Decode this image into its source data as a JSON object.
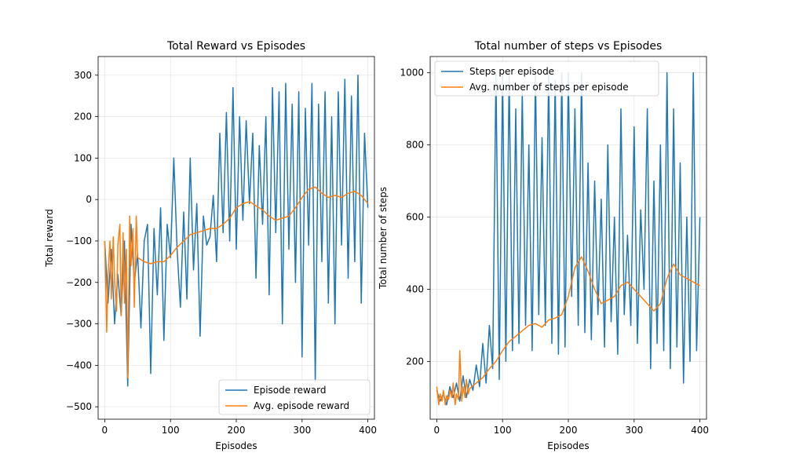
{
  "colors": {
    "series_blue": "#1f77b4",
    "series_orange": "#ff7f0e",
    "grid": "#e6e6e6",
    "axes": "#000000"
  },
  "chart_data": [
    {
      "type": "line",
      "title": "Total Reward vs Episodes",
      "xlabel": "Episodes",
      "ylabel": "Total reward",
      "xlim": [
        -10,
        410
      ],
      "ylim": [
        -530,
        345
      ],
      "xticks": [
        0,
        100,
        200,
        300,
        400
      ],
      "yticks": [
        -500,
        -400,
        -300,
        -200,
        -100,
        0,
        100,
        200,
        300
      ],
      "grid": true,
      "legend": "lower-right",
      "series": [
        {
          "name": "Episode reward",
          "color": "#1f77b4",
          "x": [
            0,
            5,
            10,
            15,
            20,
            25,
            30,
            35,
            40,
            45,
            50,
            55,
            60,
            65,
            70,
            75,
            80,
            85,
            90,
            95,
            100,
            105,
            110,
            115,
            120,
            125,
            130,
            135,
            140,
            145,
            150,
            155,
            160,
            165,
            170,
            175,
            180,
            185,
            190,
            195,
            200,
            205,
            210,
            215,
            220,
            225,
            230,
            235,
            240,
            245,
            250,
            255,
            260,
            265,
            270,
            275,
            280,
            285,
            290,
            295,
            300,
            305,
            310,
            315,
            320,
            325,
            330,
            335,
            340,
            345,
            350,
            355,
            360,
            365,
            370,
            375,
            380,
            385,
            390,
            395,
            400
          ],
          "y": [
            -100,
            -250,
            -120,
            -300,
            -180,
            -280,
            -100,
            -450,
            -60,
            -200,
            -130,
            -310,
            -100,
            -60,
            -420,
            -70,
            -230,
            -20,
            -340,
            -60,
            -140,
            100,
            -120,
            -260,
            -30,
            -240,
            100,
            -170,
            -10,
            -330,
            -40,
            -110,
            -90,
            10,
            -150,
            160,
            -80,
            210,
            -100,
            270,
            -120,
            200,
            -50,
            190,
            -10,
            160,
            -190,
            130,
            -60,
            200,
            -230,
            270,
            -80,
            260,
            -300,
            280,
            -120,
            230,
            -200,
            260,
            -380,
            220,
            -110,
            280,
            -440,
            230,
            -150,
            260,
            -250,
            200,
            -300,
            260,
            -110,
            290,
            -190,
            250,
            -150,
            300,
            -250,
            160,
            -20
          ]
        },
        {
          "name": "Avg. episode reward",
          "color": "#ff7f0e",
          "x": [
            0,
            3,
            5,
            8,
            10,
            13,
            15,
            18,
            20,
            23,
            25,
            28,
            30,
            33,
            35,
            38,
            40,
            43,
            45,
            48,
            50,
            60,
            70,
            80,
            90,
            100,
            110,
            120,
            130,
            140,
            150,
            160,
            170,
            180,
            190,
            200,
            210,
            220,
            230,
            240,
            250,
            260,
            270,
            280,
            290,
            300,
            310,
            320,
            330,
            340,
            350,
            360,
            370,
            380,
            390,
            400
          ],
          "y": [
            -100,
            -320,
            -180,
            -100,
            -240,
            -90,
            -200,
            -270,
            -110,
            -60,
            -280,
            -80,
            -250,
            -120,
            -430,
            -40,
            -160,
            -70,
            -260,
            -40,
            -140,
            -150,
            -155,
            -150,
            -150,
            -135,
            -115,
            -100,
            -85,
            -80,
            -75,
            -70,
            -70,
            -60,
            -45,
            -20,
            -10,
            -5,
            -15,
            -25,
            -40,
            -50,
            -45,
            -40,
            -20,
            5,
            25,
            30,
            15,
            5,
            10,
            5,
            15,
            20,
            10,
            -10
          ]
        }
      ]
    },
    {
      "type": "line",
      "title": "Total number of steps vs Episodes",
      "xlabel": "Episodes",
      "ylabel": "Total number of steps",
      "xlim": [
        -10,
        410
      ],
      "ylim": [
        40,
        1045
      ],
      "xticks": [
        0,
        100,
        200,
        300,
        400
      ],
      "yticks": [
        200,
        400,
        600,
        800,
        1000
      ],
      "grid": true,
      "legend": "top-left",
      "series": [
        {
          "name": "Steps per episode",
          "color": "#1f77b4",
          "x": [
            0,
            5,
            10,
            15,
            20,
            25,
            30,
            35,
            40,
            45,
            50,
            55,
            60,
            65,
            70,
            75,
            80,
            85,
            90,
            95,
            100,
            105,
            110,
            115,
            120,
            125,
            130,
            135,
            140,
            145,
            150,
            155,
            160,
            165,
            170,
            175,
            180,
            185,
            190,
            195,
            200,
            205,
            210,
            215,
            220,
            225,
            230,
            235,
            240,
            245,
            250,
            255,
            260,
            265,
            270,
            275,
            280,
            285,
            290,
            295,
            300,
            305,
            310,
            315,
            320,
            325,
            330,
            335,
            340,
            345,
            350,
            355,
            360,
            365,
            370,
            375,
            380,
            385,
            390,
            395,
            400
          ],
          "y": [
            120,
            90,
            110,
            80,
            130,
            100,
            140,
            90,
            160,
            100,
            150,
            120,
            190,
            130,
            250,
            140,
            300,
            180,
            1000,
            150,
            1000,
            200,
            1000,
            230,
            900,
            250,
            950,
            300,
            800,
            230,
            1000,
            330,
            820,
            300,
            1000,
            250,
            980,
            220,
            1000,
            240,
            1000,
            380,
            900,
            300,
            1000,
            280,
            750,
            260,
            700,
            330,
            650,
            240,
            800,
            310,
            600,
            220,
            900,
            330,
            550,
            300,
            850,
            250,
            620,
            400,
            900,
            180,
            700,
            250,
            800,
            230,
            1000,
            180,
            900,
            240,
            750,
            140,
            600,
            200,
            1000,
            230,
            600
          ]
        },
        {
          "name": "Avg. number of steps per episode",
          "color": "#ff7f0e",
          "x": [
            0,
            3,
            5,
            8,
            10,
            13,
            15,
            18,
            20,
            23,
            25,
            28,
            30,
            33,
            35,
            38,
            40,
            43,
            45,
            48,
            50,
            60,
            70,
            80,
            90,
            100,
            110,
            120,
            130,
            140,
            150,
            160,
            170,
            180,
            190,
            200,
            210,
            220,
            230,
            240,
            250,
            260,
            270,
            280,
            290,
            300,
            310,
            320,
            330,
            340,
            350,
            360,
            370,
            380,
            390,
            400
          ],
          "y": [
            130,
            80,
            110,
            90,
            120,
            80,
            105,
            95,
            120,
            100,
            140,
            80,
            110,
            95,
            230,
            90,
            130,
            100,
            150,
            110,
            125,
            140,
            155,
            180,
            200,
            230,
            255,
            270,
            285,
            300,
            305,
            295,
            315,
            320,
            330,
            380,
            460,
            490,
            450,
            400,
            360,
            370,
            380,
            410,
            420,
            400,
            380,
            360,
            340,
            360,
            430,
            470,
            440,
            430,
            420,
            410
          ]
        }
      ]
    }
  ]
}
